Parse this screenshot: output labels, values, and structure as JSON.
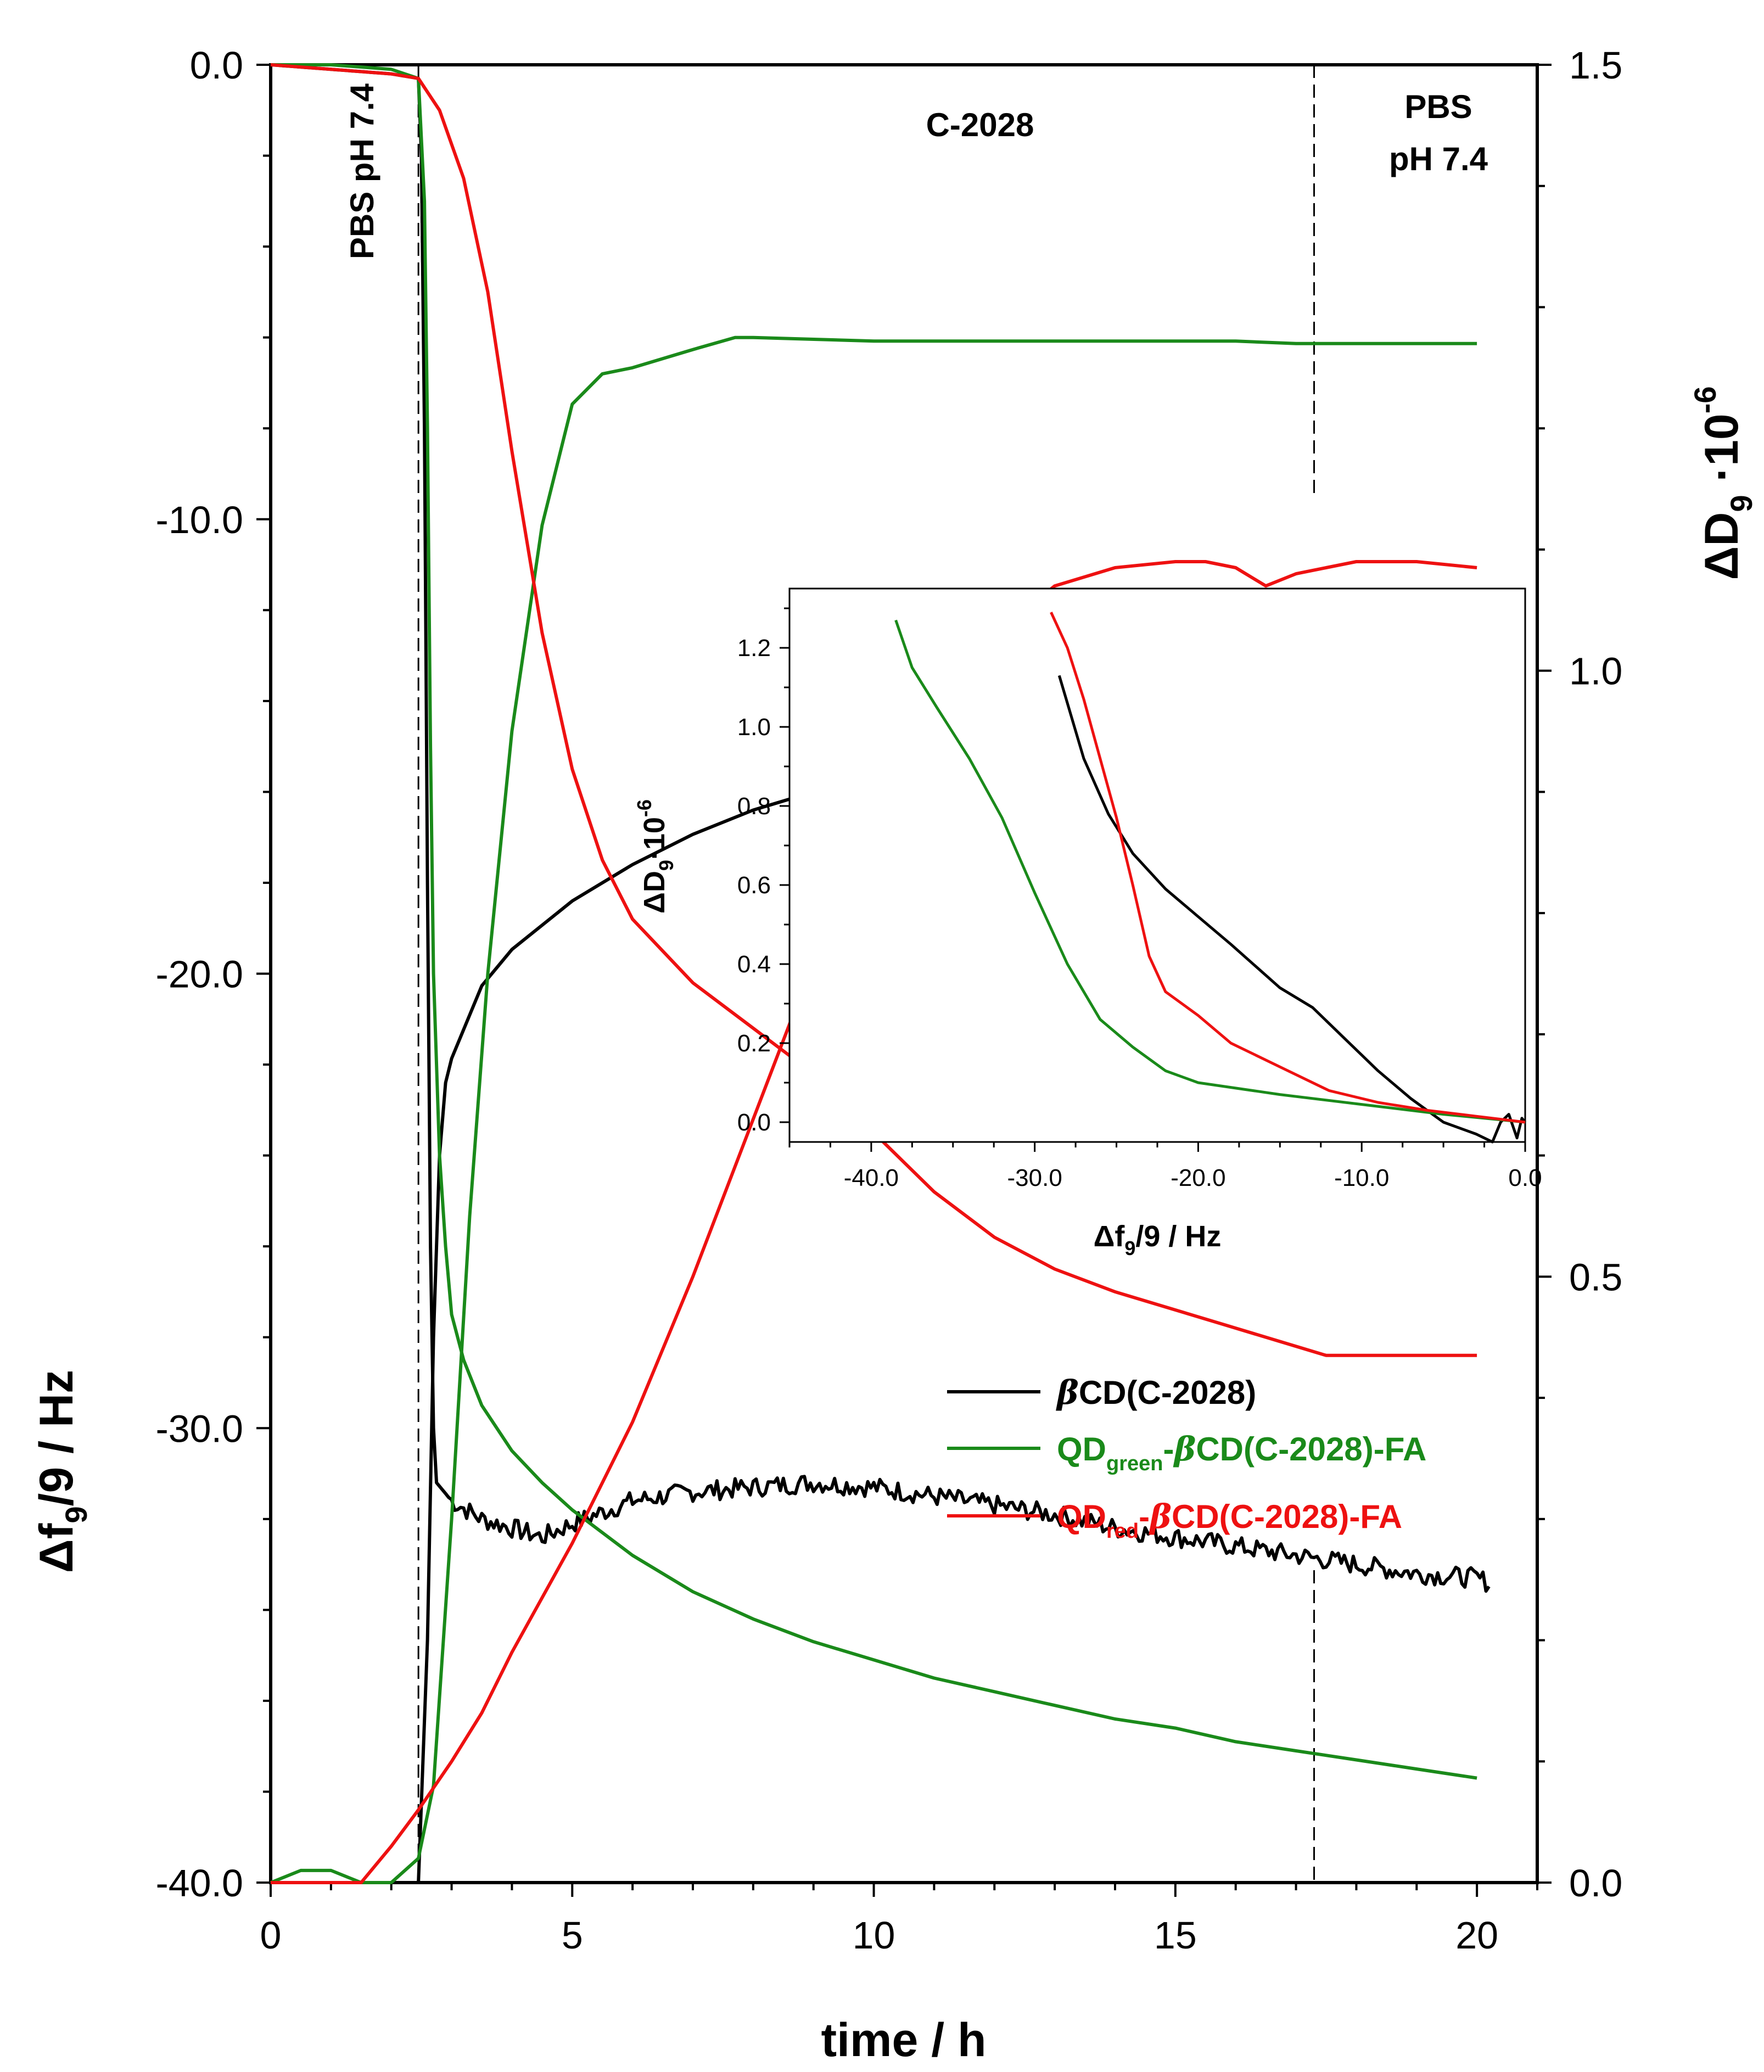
{
  "chart_data": [
    {
      "type": "line",
      "name": "main",
      "xlabel": "time / h",
      "ylabel_left": "Δf9/9 / Hz",
      "ylabel_right": "ΔD9 ·10-6",
      "xlim": [
        0,
        21
      ],
      "ylim_left": [
        -40,
        0
      ],
      "ylim_right": [
        0,
        1.5
      ],
      "x_ticks": [
        "0",
        "5",
        "10",
        "15",
        "20"
      ],
      "y_left_ticks": [
        "0.0",
        "-10.0",
        "-20.0",
        "-30.0",
        "-40.0"
      ],
      "y_right_ticks": [
        "0.0",
        "0.5",
        "1.0",
        "1.5"
      ],
      "annotations": [
        {
          "text": "PBS pH 7.4"
        },
        {
          "text": "C-2028"
        },
        {
          "text": "PBS"
        },
        {
          "text": "pH 7.4"
        }
      ],
      "vlines": [
        2.45,
        17.3
      ],
      "series": [
        {
          "name": "βCD(C-2028)",
          "color": "#000000",
          "frequency": {
            "x": [
              0,
              1,
              2,
              2.45,
              2.5,
              2.55,
              2.6,
              2.65,
              2.7,
              2.75,
              3,
              3.5,
              4,
              4.5,
              5,
              6,
              7,
              8,
              9,
              10,
              11,
              12,
              13,
              14,
              15,
              16,
              17,
              18,
              19,
              20,
              20.2
            ],
            "y": [
              0,
              -0.1,
              -0.2,
              -0.3,
              -2,
              -8,
              -18,
              -26,
              -30,
              -31.2,
              -31.6,
              -32,
              -32.2,
              -32.4,
              -32.1,
              -31.6,
              -31.4,
              -31.3,
              -31.2,
              -31.3,
              -31.5,
              -31.7,
              -31.9,
              -32.2,
              -32.4,
              -32.6,
              -32.8,
              -33.0,
              -33.2,
              -33.3,
              -33.4
            ],
            "noise": 0.22
          },
          "dissipation": {
            "x": [
              0,
              1,
              2,
              2.45,
              2.6,
              2.7,
              2.8,
              2.9,
              3.0,
              3.5,
              4,
              5,
              6,
              7,
              8,
              9,
              10,
              11,
              12,
              13,
              14,
              15,
              16,
              17,
              18,
              19,
              20
            ],
            "y": [
              0,
              0,
              0,
              0,
              0.2,
              0.45,
              0.6,
              0.66,
              0.68,
              0.74,
              0.77,
              0.81,
              0.84,
              0.865,
              0.885,
              0.9,
              0.91,
              0.92,
              0.93,
              0.94,
              0.95,
              0.96,
              0.97,
              0.98,
              0.988,
              0.995,
              1.0
            ]
          }
        },
        {
          "name": "QDgreen-βCD(C-2028)-FA",
          "color": "#1a8a1a",
          "frequency": {
            "x": [
              0,
              1,
              2,
              2.45,
              2.55,
              2.6,
              2.65,
              2.7,
              2.8,
              2.9,
              3.0,
              3.2,
              3.5,
              4,
              4.5,
              5,
              6,
              7,
              8,
              9,
              10,
              11,
              12,
              13,
              14,
              15,
              16,
              17,
              18,
              19,
              20
            ],
            "y": [
              0,
              0,
              -0.1,
              -0.3,
              -3,
              -8,
              -15,
              -20,
              -24,
              -26,
              -27.5,
              -28.5,
              -29.5,
              -30.5,
              -31.2,
              -31.8,
              -32.8,
              -33.6,
              -34.2,
              -34.7,
              -35.1,
              -35.5,
              -35.8,
              -36.1,
              -36.4,
              -36.6,
              -36.9,
              -37.1,
              -37.3,
              -37.5,
              -37.7
            ]
          },
          "dissipation": {
            "x": [
              0,
              0.5,
              1,
              1.5,
              2,
              2.45,
              2.7,
              3,
              3.3,
              3.6,
              4,
              4.5,
              5,
              5.5,
              6,
              7,
              7.7,
              8,
              10,
              12,
              14,
              16,
              17,
              18,
              20
            ],
            "y": [
              0,
              0.01,
              0.01,
              0,
              0,
              0.02,
              0.08,
              0.3,
              0.55,
              0.75,
              0.95,
              1.12,
              1.22,
              1.245,
              1.25,
              1.265,
              1.275,
              1.275,
              1.272,
              1.272,
              1.272,
              1.272,
              1.27,
              1.27,
              1.27
            ]
          }
        },
        {
          "name": "QDred-βCD(C-2028)-FA",
          "color": "#ee1111",
          "frequency": {
            "x": [
              0,
              1,
              2,
              2.45,
              2.8,
              3.2,
              3.6,
              4,
              4.5,
              5,
              5.5,
              6,
              7,
              8,
              9,
              9.5,
              10,
              11,
              12,
              13,
              14,
              15,
              16,
              17,
              17.5,
              18,
              19,
              20
            ],
            "y": [
              0,
              -0.1,
              -0.2,
              -0.3,
              -1.0,
              -2.5,
              -5,
              -8.5,
              -12.5,
              -15.5,
              -17.5,
              -18.8,
              -20.2,
              -21.2,
              -22.2,
              -22.8,
              -23.5,
              -24.8,
              -25.8,
              -26.5,
              -27.0,
              -27.4,
              -27.8,
              -28.2,
              -28.4,
              -28.4,
              -28.4,
              -28.4
            ]
          },
          "dissipation": {
            "x": [
              0,
              1,
              1.5,
              2,
              2.45,
              3,
              3.5,
              4,
              5,
              6,
              7,
              8,
              9,
              10,
              11,
              12,
              13,
              14,
              15,
              15.5,
              16,
              16.5,
              17,
              17.5,
              18,
              19,
              20
            ],
            "y": [
              0,
              0,
              0,
              0.03,
              0.06,
              0.1,
              0.14,
              0.19,
              0.28,
              0.38,
              0.5,
              0.63,
              0.76,
              0.88,
              0.97,
              1.03,
              1.07,
              1.085,
              1.09,
              1.09,
              1.085,
              1.07,
              1.08,
              1.085,
              1.09,
              1.09,
              1.085
            ]
          }
        }
      ],
      "legend": {
        "position": "right-middle",
        "entries": [
          {
            "pre": "",
            "greek": "β",
            "sub": "",
            "post": "CD(C-2028)",
            "color": "#000000"
          },
          {
            "pre": "QD",
            "sub": "green",
            "greek": "β",
            "post": "CD(C-2028)-FA",
            "color": "#1a8a1a"
          },
          {
            "pre": "QD",
            "sub": "red",
            "greek": "β",
            "post": "CD(C-2028)-FA",
            "color": "#ee1111"
          }
        ]
      }
    },
    {
      "type": "line",
      "name": "inset",
      "xlabel": "Δf9/9 / Hz",
      "ylabel": "ΔD9·10-6",
      "xlim": [
        -45,
        0
      ],
      "ylim": [
        -0.05,
        1.35
      ],
      "x_ticks": [
        "-40.0",
        "-30.0",
        "-20.0",
        "-10.0",
        "0.0"
      ],
      "y_ticks": [
        "0.0",
        "0.2",
        "0.4",
        "0.6",
        "0.8",
        "1.0",
        "1.2"
      ],
      "series": [
        {
          "name": "βCD(C-2028)",
          "color": "#000000",
          "x": [
            -28.5,
            -27,
            -25.5,
            -24,
            -22,
            -20,
            -18,
            -15,
            -13,
            -11,
            -9,
            -7,
            -5,
            -3,
            -2,
            -1.5,
            -1,
            -0.5,
            -0.2,
            0
          ],
          "y": [
            1.13,
            0.92,
            0.78,
            0.68,
            0.59,
            0.52,
            0.45,
            0.34,
            0.29,
            0.21,
            0.13,
            0.06,
            0.0,
            -0.03,
            -0.05,
            0.0,
            0.02,
            -0.04,
            0.01,
            0
          ]
        },
        {
          "name": "QDgreen-βCD(C-2028)-FA",
          "color": "#1a8a1a",
          "x": [
            -38.5,
            -37.5,
            -36,
            -34,
            -32,
            -30,
            -28,
            -26,
            -24,
            -22,
            -20,
            -15,
            -10,
            -5,
            0
          ],
          "y": [
            1.27,
            1.15,
            1.05,
            0.92,
            0.77,
            0.58,
            0.4,
            0.26,
            0.19,
            0.13,
            0.1,
            0.07,
            0.045,
            0.02,
            0
          ]
        },
        {
          "name": "QDred-βCD(C-2028)-FA",
          "color": "#ee1111",
          "x": [
            -29,
            -28,
            -27,
            -26,
            -25,
            -24,
            -23,
            -22,
            -20,
            -18,
            -15,
            -12,
            -9,
            -6,
            -3,
            0
          ],
          "y": [
            1.29,
            1.2,
            1.07,
            0.92,
            0.77,
            0.6,
            0.42,
            0.33,
            0.27,
            0.2,
            0.14,
            0.08,
            0.05,
            0.03,
            0.015,
            0
          ]
        }
      ]
    }
  ]
}
